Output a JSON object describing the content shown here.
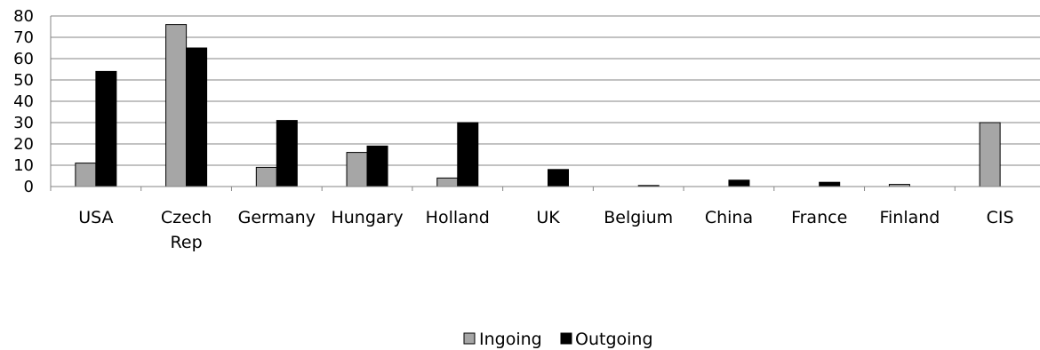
{
  "chart_data": {
    "type": "bar",
    "categories": [
      [
        "USA"
      ],
      [
        "Czech",
        "Rep"
      ],
      [
        "Germany"
      ],
      [
        "Hungary"
      ],
      [
        "Holland"
      ],
      [
        "UK"
      ],
      [
        "Belgium"
      ],
      [
        "China"
      ],
      [
        "France"
      ],
      [
        "Finland"
      ],
      [
        "CIS"
      ]
    ],
    "series": [
      {
        "name": "Ingoing",
        "color": "#a6a6a6",
        "values": [
          11,
          76,
          9,
          16,
          4,
          0,
          0,
          0,
          0,
          1,
          30
        ]
      },
      {
        "name": "Outgoing",
        "color": "#000000",
        "values": [
          54,
          65,
          31,
          19,
          30,
          8,
          0.5,
          3,
          2,
          0,
          0
        ]
      }
    ],
    "title": "",
    "xlabel": "",
    "ylabel": "",
    "ylim": [
      0,
      80
    ],
    "yticks": [
      0,
      10,
      20,
      30,
      40,
      50,
      60,
      70,
      80
    ],
    "grid": true,
    "legend_position": "bottom"
  }
}
